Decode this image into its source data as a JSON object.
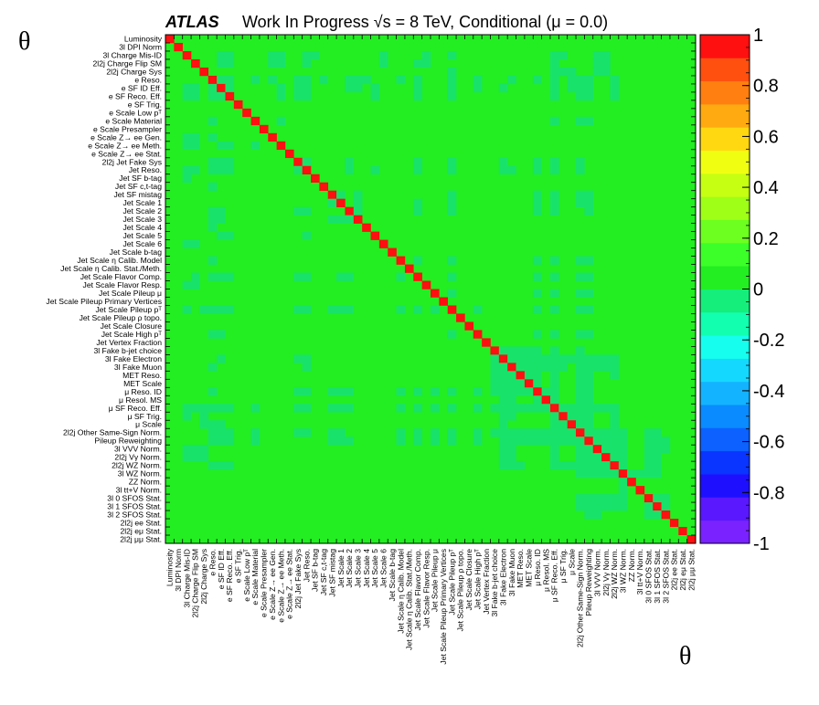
{
  "header": {
    "atlas_label": "ATLAS",
    "title": "Work In Progress √s = 8 TeV, Conditional (μ = 0.0)"
  },
  "axes": {
    "ylabel": "θ",
    "xlabel": "θ"
  },
  "chart_data": {
    "type": "heatmap",
    "title": "Work In Progress √s = 8 TeV, Conditional (μ = 0.0)",
    "xlabel": "θ",
    "ylabel": "θ",
    "zlim": [
      -1,
      1
    ],
    "colorbar_ticks": [
      "1",
      "0.8",
      "0.6",
      "0.4",
      "0.2",
      "0",
      "-0.2",
      "-0.4",
      "-0.6",
      "-0.8",
      "-1"
    ],
    "labels": [
      "Luminosity",
      "3l DPI Norm",
      "3l Charge Mis-ID",
      "2l2j Charge Flip SM",
      "2l2j Charge Sys",
      "e Reso.",
      "e SF ID Eff.",
      "e SF Reco. Eff.",
      "e SF Trig.",
      "e Scale Low pᵀ",
      "e Scale Material",
      "e Scale Presampler",
      "e Scale Z→ ee Gen.",
      "e Scale Z→ ee Meth.",
      "e Scale Z→ ee Stat.",
      "2l2j Jet Fake Sys",
      "Jet Reso.",
      "Jet SF b-tag",
      "Jet SF c,t-tag",
      "Jet SF mistag",
      "Jet Scale 1",
      "Jet Scale 2",
      "Jet Scale 3",
      "Jet Scale 4",
      "Jet Scale 5",
      "Jet Scale 6",
      "Jet Scale b-tag",
      "Jet Scale η Calib. Model",
      "Jet Scale η Calib. Stat./Meth.",
      "Jet Scale Flavor Comp.",
      "Jet Scale Flavor Resp.",
      "Jet Scale Pileup μ",
      "Jet Scale Pileup Primary Vertices",
      "Jet Scale Pileup pᵀ",
      "Jet Scale Pileup ρ topo.",
      "Jet Scale Closure",
      "Jet Scale High pᵀ",
      "Jet Vertex Fraction",
      "3l Fake b-jet choice",
      "3l Fake Electron",
      "3l Fake Muon",
      "MET Reso.",
      "MET Scale",
      "μ Reso. ID",
      "μ Resol. MS",
      "μ SF Reco. Eff.",
      "μ SF Trig.",
      "μ Scale",
      "2l2j Other Same-Sign Norm.",
      "Pileup Reweighting",
      "3l VVV Norm.",
      "2l2j Vγ Norm.",
      "2l2j WZ Norm.",
      "3l WZ Norm.",
      "ZZ Norm.",
      "3l tt+V Norm.",
      "3l 0 SFOS Stat.",
      "3l 1 SFOS Stat.",
      "3l 2 SFOS Stat.",
      "2l2j ee Stat.",
      "2l2j eμ Stat.",
      "2l2j μμ Stat."
    ],
    "values_note": "Diagonal correlation = 1 (red); the two bottom-right 2l2j Stat. entries are mostly mutually uncorrelated; off-diagonal entries are near 0 (green) with scattered weak values around -0.1.",
    "diagonal": 1.0,
    "offdiag_default": 0.0,
    "weak_negative_value": -0.1,
    "weak_cells": [
      [
        2,
        6
      ],
      [
        2,
        7
      ],
      [
        2,
        12
      ],
      [
        2,
        13
      ],
      [
        2,
        16
      ],
      [
        2,
        17
      ],
      [
        2,
        25
      ],
      [
        2,
        30
      ],
      [
        2,
        33
      ],
      [
        2,
        45
      ],
      [
        2,
        46
      ],
      [
        2,
        50
      ],
      [
        2,
        51
      ],
      [
        3,
        6
      ],
      [
        3,
        7
      ],
      [
        3,
        12
      ],
      [
        3,
        13
      ],
      [
        3,
        16
      ],
      [
        3,
        25
      ],
      [
        3,
        29
      ],
      [
        3,
        30
      ],
      [
        3,
        45
      ],
      [
        3,
        50
      ],
      [
        3,
        51
      ],
      [
        4,
        33
      ],
      [
        4,
        45
      ],
      [
        4,
        46
      ],
      [
        4,
        47
      ],
      [
        4,
        50
      ],
      [
        4,
        51
      ],
      [
        5,
        6
      ],
      [
        5,
        7
      ],
      [
        5,
        10
      ],
      [
        5,
        12
      ],
      [
        5,
        15
      ],
      [
        5,
        16
      ],
      [
        5,
        18
      ],
      [
        5,
        21
      ],
      [
        5,
        22
      ],
      [
        5,
        23
      ],
      [
        5,
        27
      ],
      [
        5,
        29
      ],
      [
        5,
        33
      ],
      [
        5,
        36
      ],
      [
        5,
        40
      ],
      [
        5,
        43
      ],
      [
        5,
        45
      ],
      [
        5,
        47
      ],
      [
        5,
        48
      ],
      [
        5,
        49
      ],
      [
        5,
        52
      ],
      [
        6,
        7
      ],
      [
        6,
        13
      ],
      [
        6,
        15
      ],
      [
        6,
        16
      ],
      [
        6,
        21
      ],
      [
        6,
        22
      ],
      [
        6,
        24
      ],
      [
        6,
        29
      ],
      [
        6,
        33
      ],
      [
        6,
        36
      ],
      [
        6,
        39
      ],
      [
        6,
        45
      ],
      [
        6,
        47
      ],
      [
        6,
        48
      ],
      [
        6,
        49
      ],
      [
        6,
        52
      ],
      [
        7,
        13
      ],
      [
        7,
        15
      ],
      [
        7,
        16
      ],
      [
        7,
        24
      ],
      [
        7,
        29
      ],
      [
        7,
        33
      ],
      [
        7,
        45
      ],
      [
        7,
        48
      ],
      [
        7,
        49
      ],
      [
        7,
        52
      ],
      [
        10,
        13
      ],
      [
        10,
        45
      ],
      [
        10,
        48
      ],
      [
        10,
        49
      ],
      [
        15,
        16
      ],
      [
        15,
        21
      ],
      [
        15,
        29
      ],
      [
        15,
        33
      ],
      [
        15,
        39
      ],
      [
        15,
        43
      ],
      [
        15,
        45
      ],
      [
        15,
        48
      ],
      [
        16,
        21
      ],
      [
        16,
        24
      ],
      [
        16,
        29
      ],
      [
        16,
        33
      ],
      [
        16,
        39
      ],
      [
        16,
        40
      ],
      [
        16,
        43
      ],
      [
        16,
        45
      ],
      [
        16,
        48
      ],
      [
        19,
        20
      ],
      [
        19,
        22
      ],
      [
        19,
        33
      ],
      [
        19,
        43
      ],
      [
        19,
        45
      ],
      [
        19,
        48
      ],
      [
        19,
        49
      ],
      [
        20,
        22
      ],
      [
        20,
        29
      ],
      [
        20,
        33
      ],
      [
        20,
        43
      ],
      [
        20,
        45
      ],
      [
        20,
        48
      ],
      [
        20,
        49
      ],
      [
        21,
        22
      ],
      [
        21,
        29
      ],
      [
        21,
        33
      ],
      [
        21,
        43
      ],
      [
        21,
        45
      ],
      [
        21,
        49
      ],
      [
        27,
        29
      ],
      [
        27,
        33
      ],
      [
        27,
        43
      ],
      [
        27,
        45
      ],
      [
        27,
        48
      ],
      [
        27,
        49
      ],
      [
        29,
        33
      ],
      [
        29,
        43
      ],
      [
        29,
        45
      ],
      [
        29,
        48
      ],
      [
        29,
        49
      ],
      [
        31,
        33
      ],
      [
        31,
        43
      ],
      [
        31,
        45
      ],
      [
        31,
        48
      ],
      [
        31,
        49
      ],
      [
        33,
        36
      ],
      [
        33,
        43
      ],
      [
        33,
        45
      ],
      [
        33,
        48
      ],
      [
        33,
        49
      ],
      [
        36,
        43
      ],
      [
        36,
        45
      ],
      [
        36,
        48
      ],
      [
        36,
        49
      ],
      [
        38,
        39
      ],
      [
        38,
        40
      ],
      [
        38,
        41
      ],
      [
        38,
        42
      ],
      [
        38,
        43
      ],
      [
        38,
        45
      ],
      [
        38,
        48
      ],
      [
        39,
        40
      ],
      [
        39,
        41
      ],
      [
        39,
        42
      ],
      [
        39,
        43
      ],
      [
        39,
        44
      ],
      [
        39,
        45
      ],
      [
        39,
        46
      ],
      [
        39,
        47
      ],
      [
        39,
        48
      ],
      [
        39,
        49
      ],
      [
        39,
        50
      ],
      [
        39,
        51
      ],
      [
        39,
        52
      ],
      [
        40,
        41
      ],
      [
        40,
        42
      ],
      [
        40,
        43
      ],
      [
        40,
        44
      ],
      [
        40,
        45
      ],
      [
        40,
        46
      ],
      [
        40,
        48
      ],
      [
        40,
        49
      ],
      [
        40,
        50
      ],
      [
        40,
        51
      ],
      [
        40,
        52
      ],
      [
        41,
        42
      ],
      [
        41,
        43
      ],
      [
        41,
        45
      ],
      [
        41,
        48
      ],
      [
        41,
        49
      ],
      [
        41,
        52
      ],
      [
        42,
        43
      ],
      [
        42,
        45
      ],
      [
        42,
        48
      ],
      [
        42,
        49
      ],
      [
        43,
        44
      ],
      [
        43,
        45
      ],
      [
        43,
        48
      ],
      [
        43,
        49
      ],
      [
        44,
        45
      ],
      [
        44,
        48
      ],
      [
        44,
        49
      ],
      [
        45,
        46
      ],
      [
        45,
        47
      ],
      [
        45,
        48
      ],
      [
        45,
        49
      ],
      [
        45,
        50
      ],
      [
        45,
        51
      ],
      [
        45,
        52
      ],
      [
        46,
        47
      ],
      [
        46,
        48
      ],
      [
        46,
        49
      ],
      [
        46,
        52
      ],
      [
        47,
        48
      ],
      [
        47,
        49
      ],
      [
        47,
        52
      ],
      [
        48,
        49
      ],
      [
        48,
        50
      ],
      [
        48,
        51
      ],
      [
        48,
        52
      ],
      [
        48,
        53
      ],
      [
        48,
        56
      ],
      [
        48,
        57
      ],
      [
        49,
        50
      ],
      [
        49,
        51
      ],
      [
        49,
        52
      ],
      [
        49,
        53
      ],
      [
        49,
        56
      ],
      [
        49,
        57
      ],
      [
        49,
        58
      ],
      [
        50,
        51
      ],
      [
        50,
        52
      ],
      [
        50,
        53
      ],
      [
        50,
        56
      ],
      [
        50,
        57
      ],
      [
        50,
        58
      ],
      [
        51,
        52
      ],
      [
        51,
        53
      ],
      [
        51,
        56
      ],
      [
        51,
        57
      ],
      [
        52,
        53
      ],
      [
        52,
        56
      ],
      [
        52,
        57
      ],
      [
        53,
        54
      ],
      [
        53,
        55
      ],
      [
        53,
        56
      ],
      [
        53,
        57
      ],
      [
        56,
        57
      ],
      [
        56,
        58
      ],
      [
        57,
        58
      ]
    ],
    "zero_corner_cells": [
      [
        59,
        60
      ],
      [
        59,
        61
      ],
      [
        60,
        61
      ]
    ],
    "colors": {
      "zero": "#22ee22",
      "weak_negative": "#19e26b",
      "diagonal": "#ff1010",
      "border": "#000000",
      "grid": "#000000"
    },
    "palette": [
      "#7a22ff",
      "#5a18ff",
      "#1e10ff",
      "#0a34ff",
      "#0c61ff",
      "#0a8bff",
      "#14b3ff",
      "#15d8ff",
      "#16ffee",
      "#12ffb0",
      "#16ee7c",
      "#22ee22",
      "#3cff2a",
      "#6cff20",
      "#9fff16",
      "#c6ff12",
      "#f0ff12",
      "#ffd812",
      "#ffaa10",
      "#ff8010",
      "#ff5010",
      "#ff1010"
    ]
  }
}
